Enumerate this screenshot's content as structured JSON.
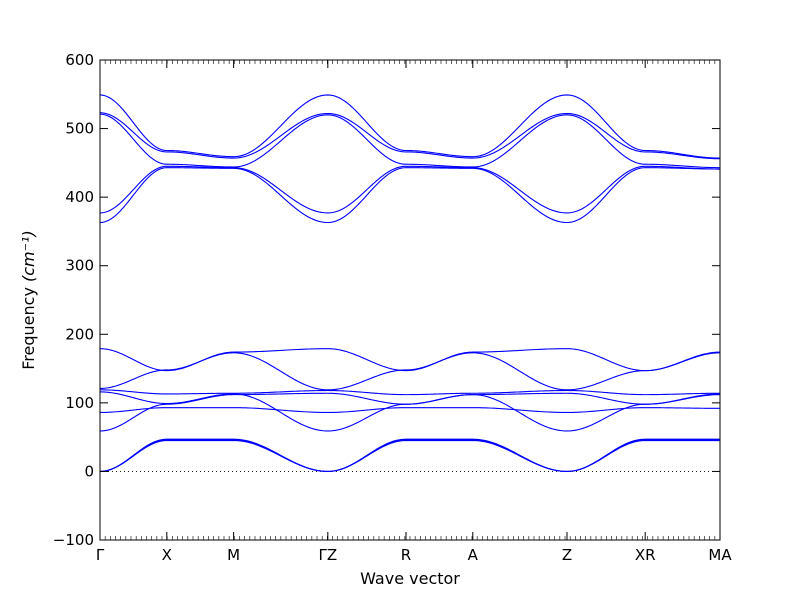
{
  "chart_data": {
    "type": "line",
    "title": "",
    "xlabel": "Wave vector",
    "ylabel": "Frequency",
    "ylabel_unit": "(cm⁻¹)",
    "ylim": [
      -100,
      600
    ],
    "yticks": [
      "−100",
      "0",
      "100",
      "200",
      "300",
      "400",
      "500",
      "600"
    ],
    "ytick_values": [
      -100,
      0,
      100,
      200,
      300,
      400,
      500,
      600
    ],
    "x_points": [
      {
        "label": "Γ",
        "pos": 0
      },
      {
        "label": "X",
        "pos": 1
      },
      {
        "label": "M",
        "pos": 2
      },
      {
        "label": "ΓZ",
        "pos": 3.41
      },
      {
        "label": "R",
        "pos": 4.58
      },
      {
        "label": "A",
        "pos": 5.58
      },
      {
        "label": "Z",
        "pos": 6.99
      },
      {
        "label": "XR",
        "pos": 8.16
      },
      {
        "label": "MA",
        "pos": 9.28
      }
    ],
    "zero_line": {
      "y": 0,
      "style": "dotted"
    },
    "line_color": "#0000ff",
    "bands": [
      {
        "name": "band-1",
        "values": [
          549,
          468,
          459,
          549,
          468,
          459,
          549,
          468,
          457
        ]
      },
      {
        "name": "band-2",
        "values": [
          523,
          466,
          457,
          522,
          466,
          457,
          522,
          466,
          456
        ]
      },
      {
        "name": "band-3",
        "values": [
          521,
          448,
          444,
          520,
          448,
          444,
          520,
          448,
          443
        ]
      },
      {
        "name": "band-4",
        "values": [
          377,
          445,
          443,
          377,
          445,
          443,
          377,
          445,
          441
        ]
      },
      {
        "name": "band-5",
        "values": [
          363,
          443,
          442,
          363,
          443,
          442,
          363,
          443,
          441
        ]
      },
      {
        "name": "band-6",
        "values": [
          179,
          147,
          174,
          179,
          147,
          174,
          179,
          147,
          174
        ]
      },
      {
        "name": "band-7",
        "values": [
          121,
          148,
          173,
          119,
          148,
          173,
          119,
          147,
          173
        ]
      },
      {
        "name": "band-8",
        "values": [
          119,
          113,
          114,
          118,
          112,
          114,
          118,
          112,
          114
        ]
      },
      {
        "name": "band-9",
        "values": [
          116,
          99,
          113,
          59,
          98,
          112,
          59,
          98,
          113
        ]
      },
      {
        "name": "band-10",
        "values": [
          86,
          93,
          93,
          86,
          93,
          93,
          86,
          93,
          92
        ]
      },
      {
        "name": "band-11",
        "values": [
          59,
          98,
          112,
          114,
          98,
          112,
          114,
          98,
          112
        ]
      },
      {
        "name": "band-12",
        "values": [
          0,
          47,
          47,
          0,
          47,
          47,
          0,
          47,
          47
        ]
      },
      {
        "name": "band-13",
        "values": [
          0,
          46,
          46,
          0,
          46,
          46,
          0,
          46,
          46
        ]
      },
      {
        "name": "band-14",
        "values": [
          0,
          45,
          45,
          0,
          45,
          45,
          0,
          45,
          45
        ]
      }
    ]
  }
}
